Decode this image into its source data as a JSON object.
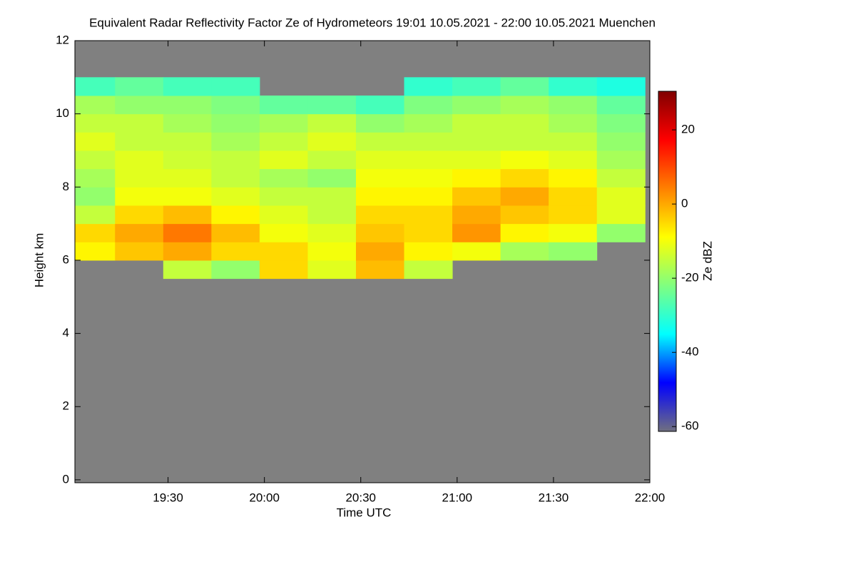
{
  "chart_data": {
    "type": "heatmap",
    "title": "Equivalent Radar Reflectivity Factor Ze of Hydrometeors   19:01 10.05.2021 - 22:00 10.05.2021 Muenchen",
    "x_label": "Time UTC",
    "y_label": "Height km",
    "colorbar_label": "Ze dBZ",
    "background": "#808080",
    "colormap": [
      "#707080",
      "#0000ff",
      "#00ffff",
      "#80ff80",
      "#ffff00",
      "#ff8000",
      "#ff0000",
      "#800000"
    ],
    "xlim": [
      19.0167,
      22.0
    ],
    "xticks": [
      {
        "value": 19.5,
        "label": "19:30"
      },
      {
        "value": 20.0,
        "label": "20:00"
      },
      {
        "value": 20.5,
        "label": "20:30"
      },
      {
        "value": 21.0,
        "label": "21:00"
      },
      {
        "value": 21.5,
        "label": "21:30"
      },
      {
        "value": 22.0,
        "label": "22:00"
      }
    ],
    "ylim": [
      -0.08,
      12.0
    ],
    "yticks": [
      0,
      2,
      4,
      6,
      8,
      10,
      12
    ],
    "zlim": [
      -61.3,
      30.4
    ],
    "zticks": [
      -60,
      -40,
      -20,
      0,
      20
    ],
    "x": [
      19.1,
      19.35,
      19.6,
      19.85,
      20.1,
      20.35,
      20.6,
      20.85,
      21.1,
      21.35,
      21.6,
      21.85
    ],
    "y": [
      5.75,
      6.25,
      6.75,
      7.25,
      7.75,
      8.25,
      8.75,
      9.25,
      9.75,
      10.25,
      10.75
    ],
    "values": [
      [
        null,
        -8,
        -5,
        -15,
        -20,
        -18,
        -15,
        -12,
        -15,
        -18,
        -28
      ],
      [
        null,
        -3,
        0,
        -5,
        -10,
        -12,
        -12,
        -15,
        -15,
        -20,
        -25
      ],
      [
        -15,
        0,
        5,
        -2,
        -10,
        -12,
        -14,
        -15,
        -18,
        -20,
        -28
      ],
      [
        -20,
        -5,
        -2,
        -8,
        -12,
        -15,
        -15,
        -18,
        -20,
        -22,
        -28
      ],
      [
        -5,
        -5,
        -10,
        -12,
        -15,
        -18,
        -12,
        -15,
        -18,
        -25,
        null
      ],
      [
        -12,
        -10,
        -12,
        -15,
        -15,
        -20,
        -15,
        -12,
        -15,
        -25,
        null
      ],
      [
        -2,
        0,
        -3,
        -5,
        -8,
        -10,
        -12,
        -15,
        -20,
        -28,
        null
      ],
      [
        -15,
        -8,
        -5,
        -5,
        -8,
        -10,
        -12,
        -15,
        -18,
        -22,
        -30
      ],
      [
        null,
        -10,
        2,
        0,
        -3,
        -8,
        -12,
        -15,
        -15,
        -20,
        -28
      ],
      [
        null,
        -18,
        -8,
        -3,
        0,
        -5,
        -10,
        -15,
        -15,
        -18,
        -25
      ],
      [
        null,
        -20,
        -10,
        -5,
        -5,
        -8,
        -12,
        -15,
        -18,
        -20,
        -30
      ],
      [
        null,
        null,
        -20,
        -12,
        -12,
        -15,
        -18,
        -20,
        -22,
        -25,
        -32
      ]
    ]
  }
}
